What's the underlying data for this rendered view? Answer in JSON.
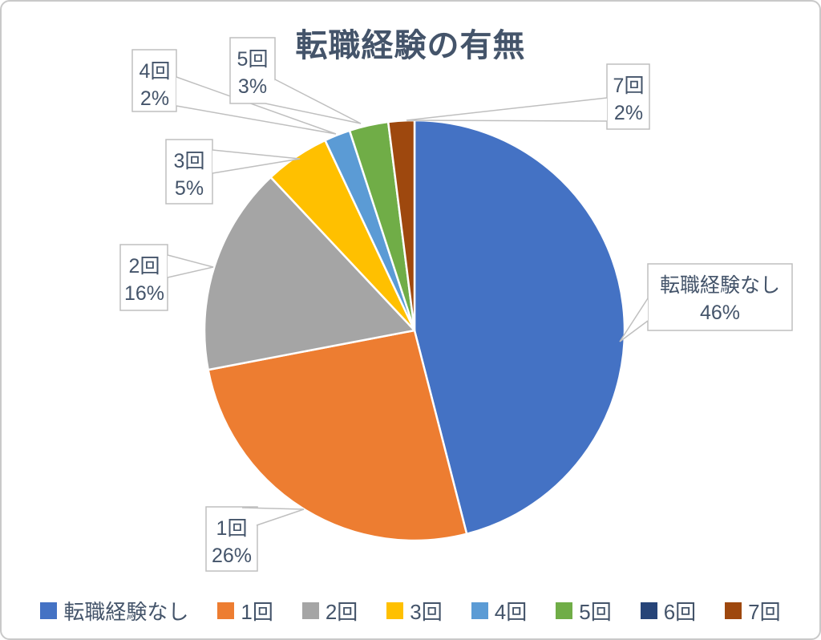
{
  "chart": {
    "text_color": "#44546A",
    "callout_border_color": "#BFBFBF",
    "background": "#FFFFFF"
  },
  "chart_data": {
    "type": "pie",
    "title": "転職経験の有無",
    "categories": [
      "転職経験なし",
      "1回",
      "2回",
      "3回",
      "4回",
      "5回",
      "6回",
      "7回"
    ],
    "values": [
      46,
      26,
      16,
      5,
      2,
      3,
      0,
      2
    ],
    "unit": "%",
    "pct_labels": [
      "46%",
      "26%",
      "16%",
      "5%",
      "2%",
      "3%",
      "",
      "2%"
    ],
    "colors": [
      "#4472C4",
      "#ED7D31",
      "#A5A5A5",
      "#FFC000",
      "#5B9BD5",
      "#70AD47",
      "#264478",
      "#9E480E"
    ],
    "legend_position": "bottom",
    "start_angle_deg": 0,
    "direction": "clockwise",
    "labels_style": "callout-boxes with leader lines, category name and percent"
  }
}
